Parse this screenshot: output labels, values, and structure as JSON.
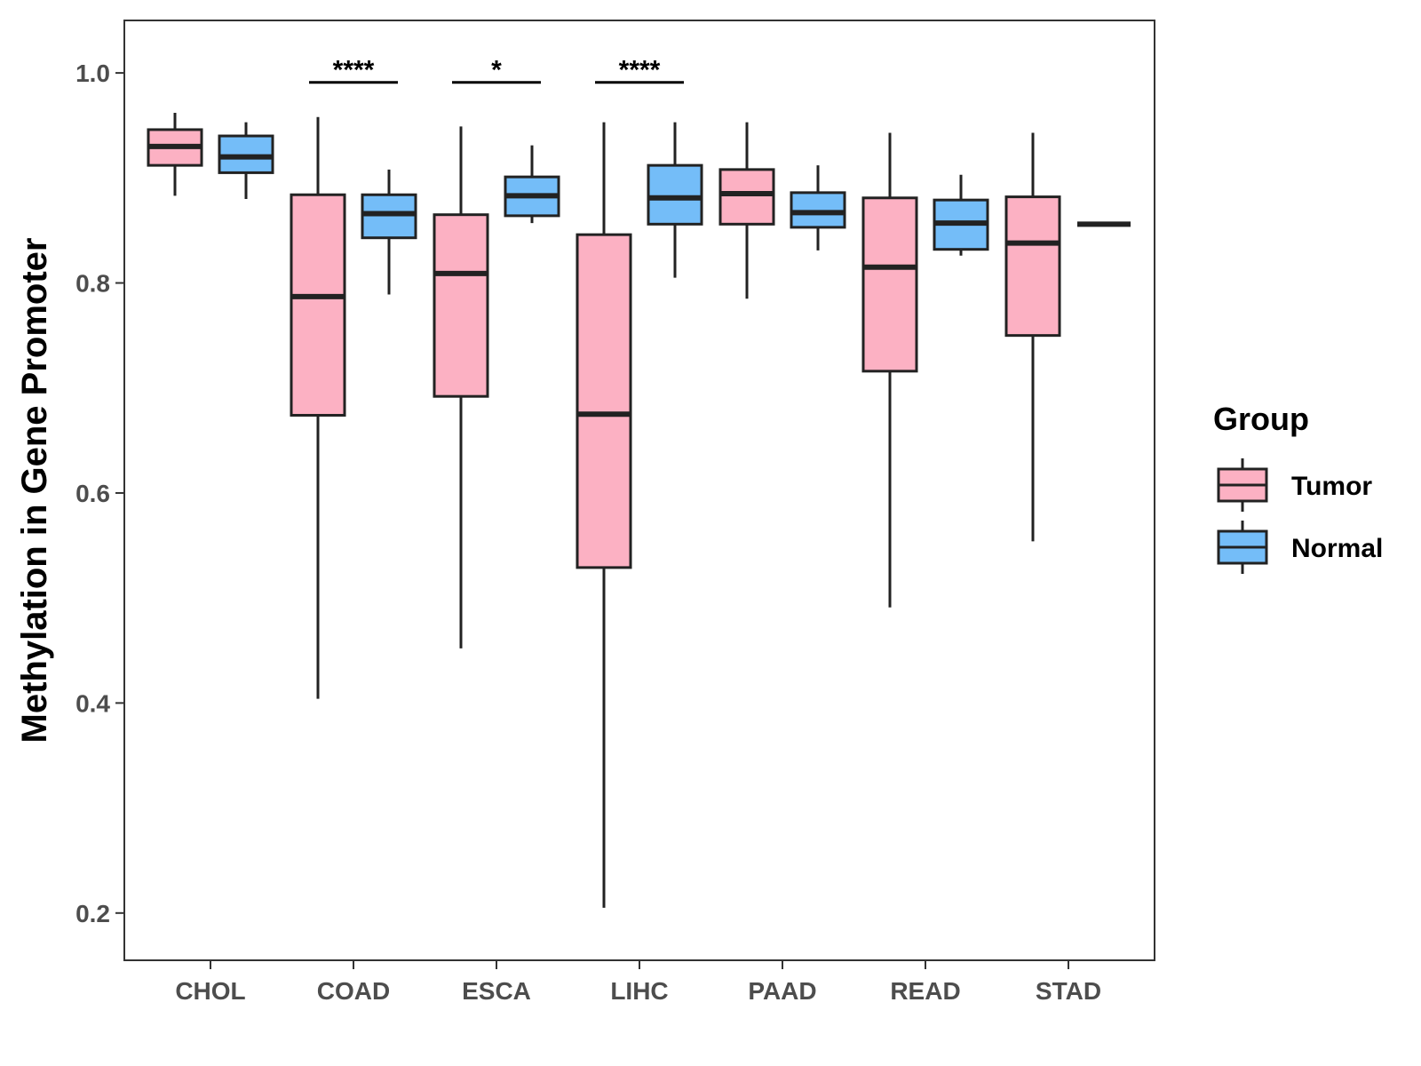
{
  "chart_data": {
    "type": "boxplot",
    "title": "",
    "xlabel": "",
    "ylabel": "Methylation in Gene Promoter",
    "ylim": [
      0.155,
      1.05
    ],
    "yticks": [
      0.2,
      0.4,
      0.6,
      0.8,
      1.0
    ],
    "ytick_labels": [
      "0.2",
      "0.4",
      "0.6",
      "0.8",
      "1.0"
    ],
    "categories": [
      "CHOL",
      "COAD",
      "ESCA",
      "LIHC",
      "PAAD",
      "READ",
      "STAD"
    ],
    "legend": {
      "title": "Group",
      "position": "right",
      "entries": [
        {
          "name": "Tumor",
          "color": "#fcb1c3"
        },
        {
          "name": "Normal",
          "color": "#74bdf8"
        }
      ]
    },
    "series": [
      {
        "name": "Tumor",
        "color": "#fcb1c3",
        "boxes": [
          {
            "min": 0.883,
            "q1": 0.912,
            "median": 0.93,
            "q3": 0.946,
            "max": 0.962
          },
          {
            "min": 0.404,
            "q1": 0.674,
            "median": 0.787,
            "q3": 0.884,
            "max": 0.958
          },
          {
            "min": 0.452,
            "q1": 0.692,
            "median": 0.809,
            "q3": 0.865,
            "max": 0.949
          },
          {
            "min": 0.205,
            "q1": 0.529,
            "median": 0.675,
            "q3": 0.846,
            "max": 0.953
          },
          {
            "min": 0.785,
            "q1": 0.856,
            "median": 0.885,
            "q3": 0.908,
            "max": 0.953
          },
          {
            "min": 0.491,
            "q1": 0.716,
            "median": 0.815,
            "q3": 0.881,
            "max": 0.943
          },
          {
            "min": 0.554,
            "q1": 0.75,
            "median": 0.838,
            "q3": 0.882,
            "max": 0.943
          }
        ]
      },
      {
        "name": "Normal",
        "color": "#74bdf8",
        "boxes": [
          {
            "min": 0.88,
            "q1": 0.905,
            "median": 0.92,
            "q3": 0.94,
            "max": 0.953
          },
          {
            "min": 0.789,
            "q1": 0.843,
            "median": 0.866,
            "q3": 0.884,
            "max": 0.908
          },
          {
            "min": 0.857,
            "q1": 0.864,
            "median": 0.883,
            "q3": 0.901,
            "max": 0.931
          },
          {
            "min": 0.805,
            "q1": 0.856,
            "median": 0.881,
            "q3": 0.912,
            "max": 0.953
          },
          {
            "min": 0.831,
            "q1": 0.853,
            "median": 0.867,
            "q3": 0.886,
            "max": 0.912
          },
          {
            "min": 0.826,
            "q1": 0.832,
            "median": 0.857,
            "q3": 0.879,
            "max": 0.903
          },
          {
            "min": 0.856,
            "q1": 0.856,
            "median": 0.856,
            "q3": 0.856,
            "max": 0.856
          }
        ]
      }
    ],
    "significance": [
      {
        "category": "COAD",
        "label": "****",
        "y": 0.991
      },
      {
        "category": "ESCA",
        "label": "*",
        "y": 0.991
      },
      {
        "category": "LIHC",
        "label": "****",
        "y": 0.991
      }
    ],
    "grid": false
  }
}
